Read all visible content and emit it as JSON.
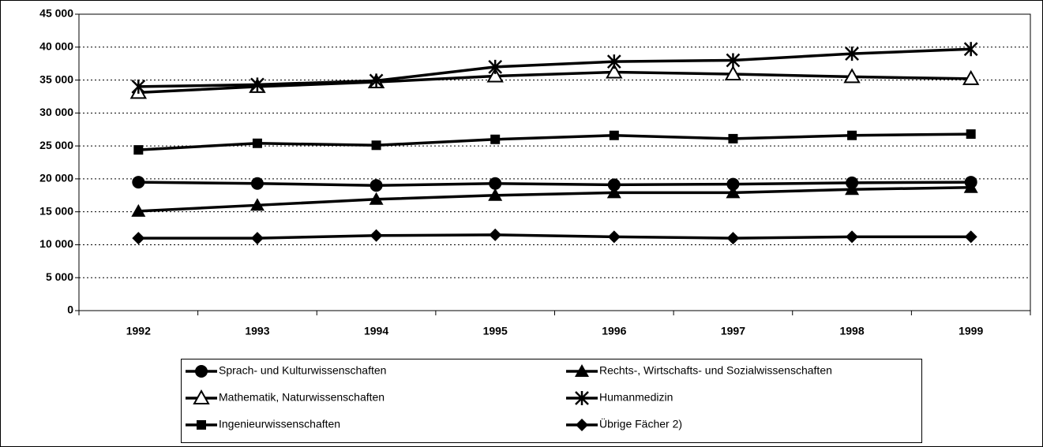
{
  "chart_data": {
    "type": "line",
    "categories": [
      "1992",
      "1993",
      "1994",
      "1995",
      "1996",
      "1997",
      "1998",
      "1999"
    ],
    "series": [
      {
        "name": "Sprach- und Kulturwissenschaften",
        "color": "#000000",
        "marker": "circle",
        "values": [
          19500,
          19300,
          19000,
          19300,
          19100,
          19200,
          19400,
          19500
        ]
      },
      {
        "name": "Rechts-, Wirtschafts- und Sozialwissenschaften",
        "color": "#000000",
        "marker": "triangle",
        "values": [
          15100,
          16000,
          16900,
          17500,
          17900,
          17900,
          18400,
          18700
        ]
      },
      {
        "name": "Mathematik, Naturwissenschaften",
        "color": "#000000",
        "marker": "triangle-open",
        "values": [
          33100,
          34000,
          34700,
          35600,
          36200,
          35900,
          35500,
          35200
        ]
      },
      {
        "name": "Humanmedizin",
        "color": "#000000",
        "marker": "asterisk",
        "values": [
          34000,
          34300,
          34900,
          37000,
          37800,
          38000,
          39000,
          39700
        ]
      },
      {
        "name": "Ingenieurwissenschaften",
        "color": "#000000",
        "marker": "square",
        "values": [
          24400,
          25400,
          25100,
          26000,
          26600,
          26100,
          26600,
          26800
        ]
      },
      {
        "name": "Übrige Fächer 2)",
        "color": "#000000",
        "marker": "diamond",
        "values": [
          11000,
          11000,
          11400,
          11500,
          11200,
          11000,
          11200,
          11200
        ]
      }
    ],
    "ylim": [
      0,
      45000
    ],
    "yticks": [
      {
        "value": 0,
        "label": "0"
      },
      {
        "value": 5000,
        "label": "5 000"
      },
      {
        "value": 10000,
        "label": "10 000"
      },
      {
        "value": 15000,
        "label": "15 000"
      },
      {
        "value": 20000,
        "label": "20 000"
      },
      {
        "value": 25000,
        "label": "25 000"
      },
      {
        "value": 30000,
        "label": "30 000"
      },
      {
        "value": 35000,
        "label": "35 000"
      },
      {
        "value": 40000,
        "label": "40 000"
      },
      {
        "value": 45000,
        "label": "45 000"
      }
    ],
    "grid": true,
    "legend": "bottom"
  }
}
